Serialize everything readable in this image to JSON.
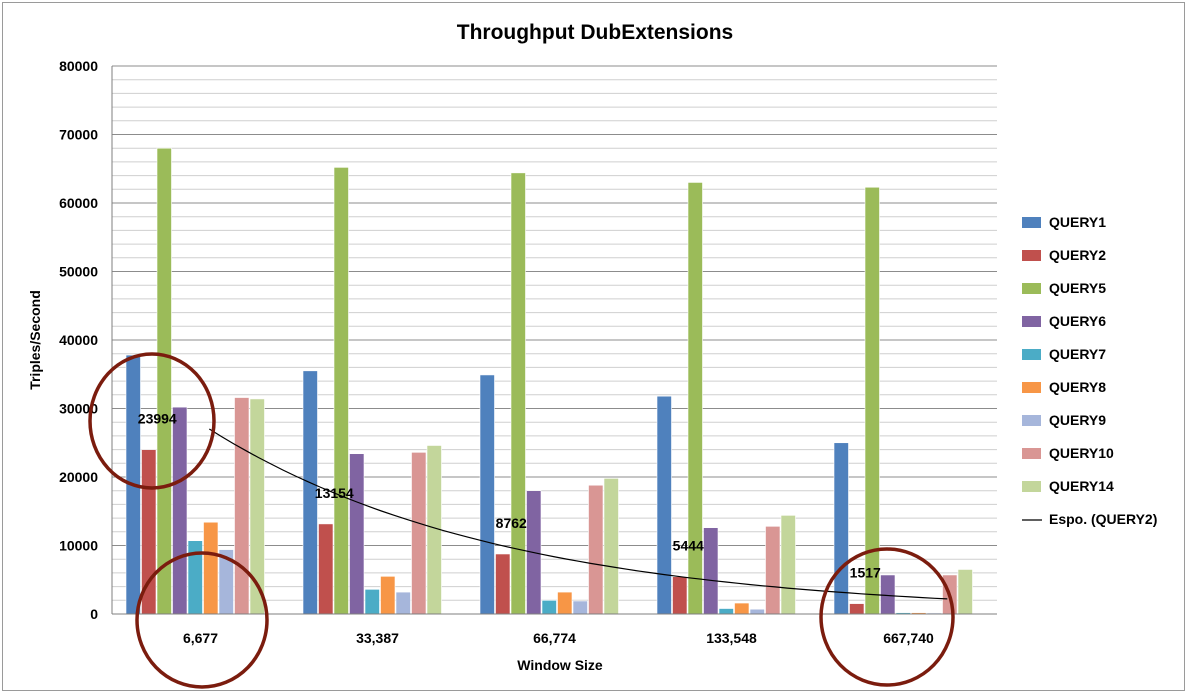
{
  "chart_data": {
    "type": "bar",
    "title": "Throughput DubExtensions",
    "xlabel": "Window Size",
    "ylabel": "Triples/Second",
    "ylim": [
      0,
      80000
    ],
    "yticks": [
      0,
      10000,
      20000,
      30000,
      40000,
      50000,
      60000,
      70000,
      80000
    ],
    "categories": [
      "6,677",
      "33,387",
      "66,774",
      "133,548",
      "667,740"
    ],
    "series": [
      {
        "name": "QUERY1",
        "color": "#4F81BD",
        "values": [
          37800,
          35500,
          34900,
          31800,
          25000
        ]
      },
      {
        "name": "QUERY2",
        "color": "#C0504D",
        "values": [
          23994,
          13154,
          8762,
          5444,
          1517
        ]
      },
      {
        "name": "QUERY5",
        "color": "#9BBB59",
        "values": [
          68000,
          65200,
          64400,
          63000,
          62300
        ]
      },
      {
        "name": "QUERY6",
        "color": "#8064A2",
        "values": [
          30200,
          23400,
          18000,
          12600,
          5700
        ]
      },
      {
        "name": "QUERY7",
        "color": "#4BACC6",
        "values": [
          10700,
          3600,
          2000,
          800,
          200
        ]
      },
      {
        "name": "QUERY8",
        "color": "#F79646",
        "values": [
          13400,
          5500,
          3200,
          1600,
          200
        ]
      },
      {
        "name": "QUERY9",
        "color": "#A6B6DB",
        "values": [
          9400,
          3200,
          1900,
          700,
          150
        ]
      },
      {
        "name": "QUERY10",
        "color": "#D99694",
        "values": [
          31600,
          23600,
          18800,
          12800,
          5700
        ]
      },
      {
        "name": "QUERY14",
        "color": "#C3D69B",
        "values": [
          31400,
          24600,
          19800,
          14400,
          6500
        ]
      }
    ],
    "data_labels": [
      {
        "series": "QUERY2",
        "category": "6,677",
        "text": "23994"
      },
      {
        "series": "QUERY2",
        "category": "33,387",
        "text": "13154"
      },
      {
        "series": "QUERY2",
        "category": "66,774",
        "text": "8762"
      },
      {
        "series": "QUERY2",
        "category": "133,548",
        "text": "5444"
      },
      {
        "series": "QUERY2",
        "category": "667,740",
        "text": "1517"
      }
    ],
    "trendline": {
      "name": "Espo. (QUERY2)",
      "type": "exponential",
      "of_series": "QUERY2",
      "start_value": 27000,
      "end_value": 2200,
      "color": "#000000"
    },
    "annotations": [
      {
        "type": "circle",
        "around": "QUERY2 data label at 6,677",
        "color": "#7B1C0E"
      },
      {
        "type": "circle",
        "around": "x tick 6,677",
        "color": "#7B1C0E"
      },
      {
        "type": "circle",
        "around": "x tick 667,740 and label 1517",
        "color": "#7B1C0E"
      }
    ],
    "grid": true,
    "legend_position": "right"
  }
}
